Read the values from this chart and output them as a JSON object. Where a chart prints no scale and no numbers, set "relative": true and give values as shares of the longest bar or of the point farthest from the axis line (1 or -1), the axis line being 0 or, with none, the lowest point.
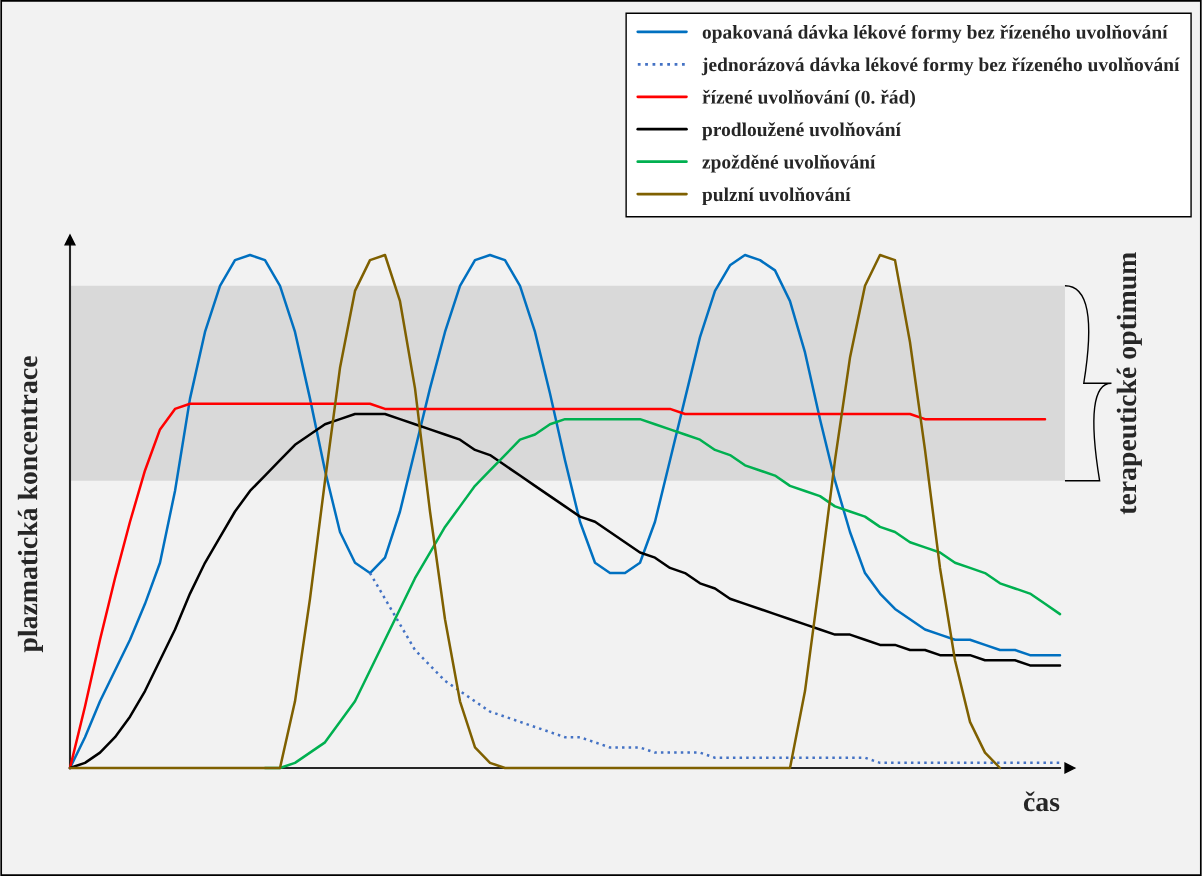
{
  "chart_data": {
    "type": "line",
    "relative": true,
    "xlabel": "čas",
    "ylabel": "plazmatická koncentrace",
    "legend": "top right",
    "categories": [
      null,
      null,
      null,
      null,
      null,
      null,
      null,
      null,
      null,
      null,
      null,
      null,
      null,
      null,
      null,
      null,
      null,
      null,
      null,
      null,
      null,
      null,
      null,
      null,
      null,
      null,
      null,
      null,
      null,
      null,
      null,
      null,
      null,
      null,
      null,
      null,
      null,
      null,
      null,
      null,
      null,
      null,
      null,
      null,
      null,
      null,
      null,
      null,
      null,
      null,
      null,
      null,
      null,
      null,
      null,
      null,
      null,
      null,
      null,
      null,
      null,
      null,
      null,
      null,
      null,
      null,
      null
    ],
    "series": [
      {
        "name": "opakovaná dávka lékové formy bez řízeného uvolňování",
        "color": "#0070c0",
        "line_style": "solid",
        "values": [
          0,
          0.06,
          0.13,
          0.19,
          0.25,
          0.32,
          0.4,
          0.54,
          0.72,
          0.85,
          0.94,
          0.99,
          1.0,
          0.99,
          0.94,
          0.85,
          0.72,
          0.58,
          0.46,
          0.4,
          0.38,
          0.41,
          0.5,
          0.62,
          0.74,
          0.85,
          0.94,
          0.99,
          1.0,
          0.99,
          0.94,
          0.85,
          0.73,
          0.6,
          0.48,
          0.4,
          0.38,
          0.38,
          0.4,
          0.48,
          0.6,
          0.72,
          0.84,
          0.93,
          0.98,
          1.0,
          0.99,
          0.97,
          0.91,
          0.81,
          0.68,
          0.56,
          0.46,
          0.38,
          0.34,
          0.31,
          0.29,
          0.27,
          0.26,
          0.25,
          0.25,
          0.24,
          0.23,
          0.23,
          0.22,
          0.22,
          0.22
        ]
      },
      {
        "name": "jednorázová dávka lékové formy bez řízeného uvolňování",
        "color": "#4472c4",
        "line_style": "dotted",
        "values": [
          null,
          null,
          null,
          null,
          null,
          null,
          null,
          null,
          null,
          null,
          null,
          null,
          null,
          null,
          null,
          null,
          null,
          null,
          null,
          null,
          0.38,
          0.33,
          0.28,
          0.23,
          0.2,
          0.17,
          0.15,
          0.13,
          0.11,
          0.1,
          0.09,
          0.08,
          0.07,
          0.06,
          0.06,
          0.05,
          0.04,
          0.04,
          0.04,
          0.03,
          0.03,
          0.03,
          0.03,
          0.02,
          0.02,
          0.02,
          0.02,
          0.02,
          0.02,
          0.02,
          0.02,
          0.02,
          0.02,
          0.02,
          0.01,
          0.01,
          0.01,
          0.01,
          0.01,
          0.01,
          0.01,
          0.01,
          0.01,
          0.01,
          0.01,
          0.01,
          0.01
        ]
      },
      {
        "name": "řízené uvolňování (0. řád)",
        "color": "#ff0000",
        "line_style": "solid",
        "values": [
          0,
          0.12,
          0.25,
          0.37,
          0.48,
          0.58,
          0.66,
          0.7,
          0.71,
          0.71,
          0.71,
          0.71,
          0.71,
          0.71,
          0.71,
          0.71,
          0.71,
          0.71,
          0.71,
          0.71,
          0.71,
          0.7,
          0.7,
          0.7,
          0.7,
          0.7,
          0.7,
          0.7,
          0.7,
          0.7,
          0.7,
          0.7,
          0.7,
          0.7,
          0.7,
          0.7,
          0.7,
          0.7,
          0.7,
          0.7,
          0.7,
          0.69,
          0.69,
          0.69,
          0.69,
          0.69,
          0.69,
          0.69,
          0.69,
          0.69,
          0.69,
          0.69,
          0.69,
          0.69,
          0.69,
          0.69,
          0.69,
          0.68,
          0.68,
          0.68,
          0.68,
          0.68,
          0.68,
          0.68,
          0.68,
          0.68,
          null
        ]
      },
      {
        "name": "prodloužené uvolňování",
        "color": "#000000",
        "line_style": "solid",
        "values": [
          0,
          0.01,
          0.03,
          0.06,
          0.1,
          0.15,
          0.21,
          0.27,
          0.34,
          0.4,
          0.45,
          0.5,
          0.54,
          0.57,
          0.6,
          0.63,
          0.65,
          0.67,
          0.68,
          0.69,
          0.69,
          0.69,
          0.68,
          0.67,
          0.66,
          0.65,
          0.64,
          0.62,
          0.61,
          0.59,
          0.57,
          0.55,
          0.53,
          0.51,
          0.49,
          0.48,
          0.46,
          0.44,
          0.42,
          0.41,
          0.39,
          0.38,
          0.36,
          0.35,
          0.33,
          0.32,
          0.31,
          0.3,
          0.29,
          0.28,
          0.27,
          0.26,
          0.26,
          0.25,
          0.24,
          0.24,
          0.23,
          0.23,
          0.22,
          0.22,
          0.22,
          0.21,
          0.21,
          0.21,
          0.2,
          0.2,
          0.2
        ]
      },
      {
        "name": "zpožděné uvolňování",
        "color": "#00b050",
        "line_style": "solid",
        "values": [
          null,
          null,
          null,
          null,
          null,
          null,
          null,
          null,
          null,
          null,
          null,
          null,
          null,
          0,
          0,
          0.01,
          0.03,
          0.05,
          0.09,
          0.13,
          0.19,
          0.25,
          0.31,
          0.37,
          0.42,
          0.47,
          0.51,
          0.55,
          0.58,
          0.61,
          0.64,
          0.65,
          0.67,
          0.68,
          0.68,
          0.68,
          0.68,
          0.68,
          0.68,
          0.67,
          0.66,
          0.65,
          0.64,
          0.62,
          0.61,
          0.59,
          0.58,
          0.57,
          0.55,
          0.54,
          0.53,
          0.51,
          0.5,
          0.49,
          0.47,
          0.46,
          0.44,
          0.43,
          0.42,
          0.4,
          0.39,
          0.38,
          0.36,
          0.35,
          0.34,
          0.32,
          0.3
        ]
      },
      {
        "name": "pulzní uvolňování",
        "color": "#7f6000",
        "line_style": "solid",
        "values": [
          0,
          0,
          0,
          0,
          0,
          0,
          0,
          0,
          0,
          0,
          0,
          0,
          0,
          0,
          0,
          0.13,
          0.33,
          0.56,
          0.78,
          0.93,
          0.99,
          1.0,
          0.91,
          0.74,
          0.5,
          0.29,
          0.13,
          0.04,
          0.01,
          0,
          0,
          0,
          0,
          0,
          0,
          0,
          0,
          0,
          0,
          0,
          0,
          0,
          0,
          0,
          0,
          0,
          0,
          0,
          0,
          0.15,
          0.37,
          0.6,
          0.8,
          0.94,
          1.0,
          0.99,
          0.83,
          0.62,
          0.39,
          0.21,
          0.09,
          0.03,
          0,
          null,
          null,
          null,
          null
        ]
      }
    ],
    "bands": [
      {
        "axis": "y",
        "from": 0.56,
        "to": 0.94,
        "label": "terapeutické optimum",
        "color": "#d9d9d9"
      }
    ]
  }
}
